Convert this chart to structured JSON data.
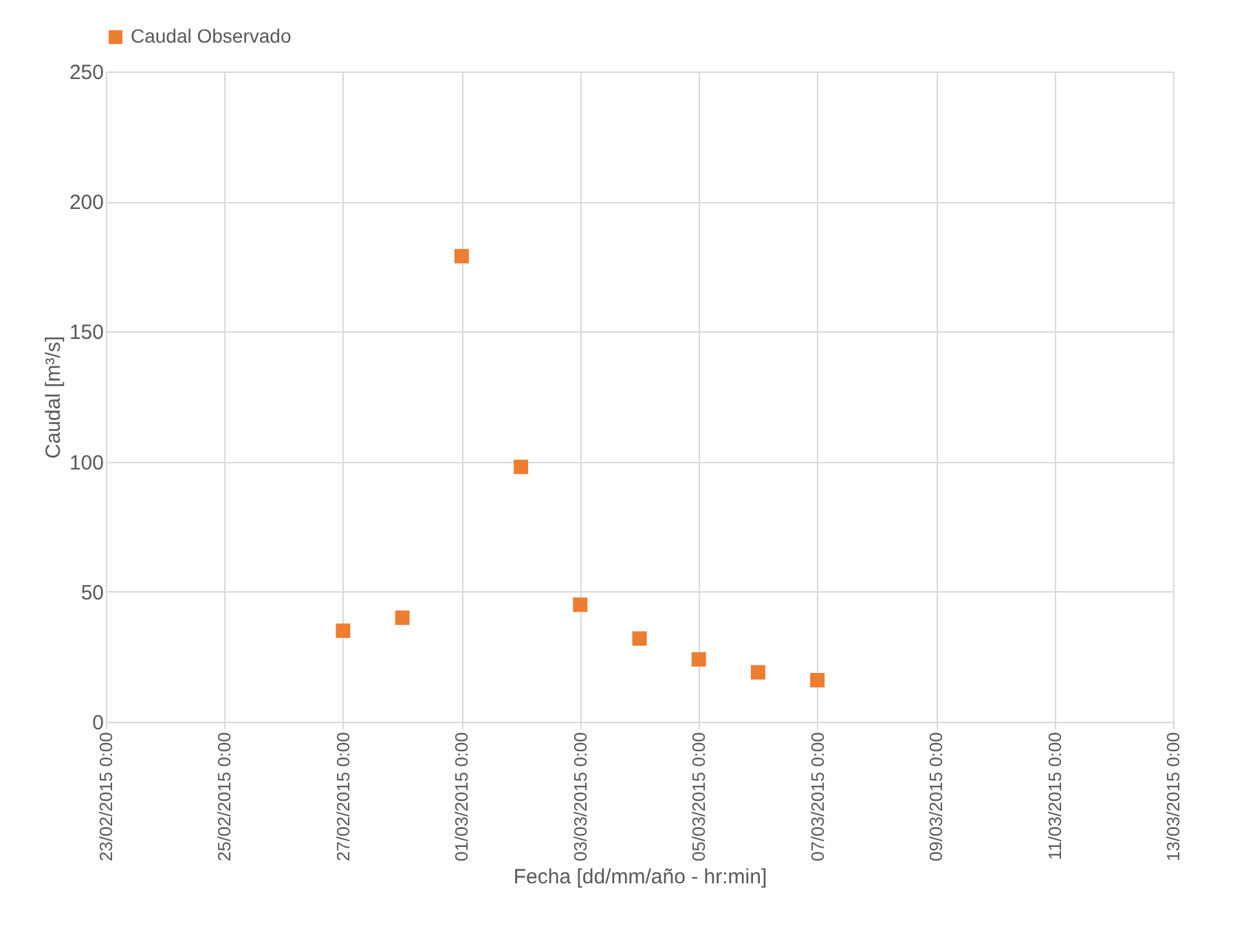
{
  "chart_data": {
    "type": "scatter",
    "xlabel": "Fecha [dd/mm/año - hr:min]",
    "ylabel": "Caudal [m³/s]",
    "x": [
      "2015-02-27",
      "2015-02-28",
      "2015-03-01",
      "2015-03-02",
      "2015-03-03",
      "2015-03-04",
      "2015-03-05",
      "2015-03-06",
      "2015-03-07"
    ],
    "series": [
      {
        "name": "Caudal Observado",
        "color": "#ed7d31",
        "values": [
          35,
          40,
          179,
          98,
          45,
          32,
          24,
          19,
          16
        ]
      }
    ],
    "xlim": [
      "2015-02-23",
      "2015-03-13"
    ],
    "xticks": [
      {
        "value": "2015-02-23",
        "label": "23/02/2015 0:00"
      },
      {
        "value": "2015-02-25",
        "label": "25/02/2015 0:00"
      },
      {
        "value": "2015-02-27",
        "label": "27/02/2015 0:00"
      },
      {
        "value": "2015-03-01",
        "label": "01/03/2015 0:00"
      },
      {
        "value": "2015-03-03",
        "label": "03/03/2015 0:00"
      },
      {
        "value": "2015-03-05",
        "label": "05/03/2015 0:00"
      },
      {
        "value": "2015-03-07",
        "label": "07/03/2015 0:00"
      },
      {
        "value": "2015-03-09",
        "label": "09/03/2015 0:00"
      },
      {
        "value": "2015-03-11",
        "label": "11/03/2015 0:00"
      },
      {
        "value": "2015-03-13",
        "label": "13/03/2015 0:00"
      }
    ],
    "ylim": [
      0,
      250
    ],
    "yticks": [
      0,
      50,
      100,
      150,
      200,
      250
    ],
    "grid": true,
    "legend": "top",
    "marker": "square"
  }
}
